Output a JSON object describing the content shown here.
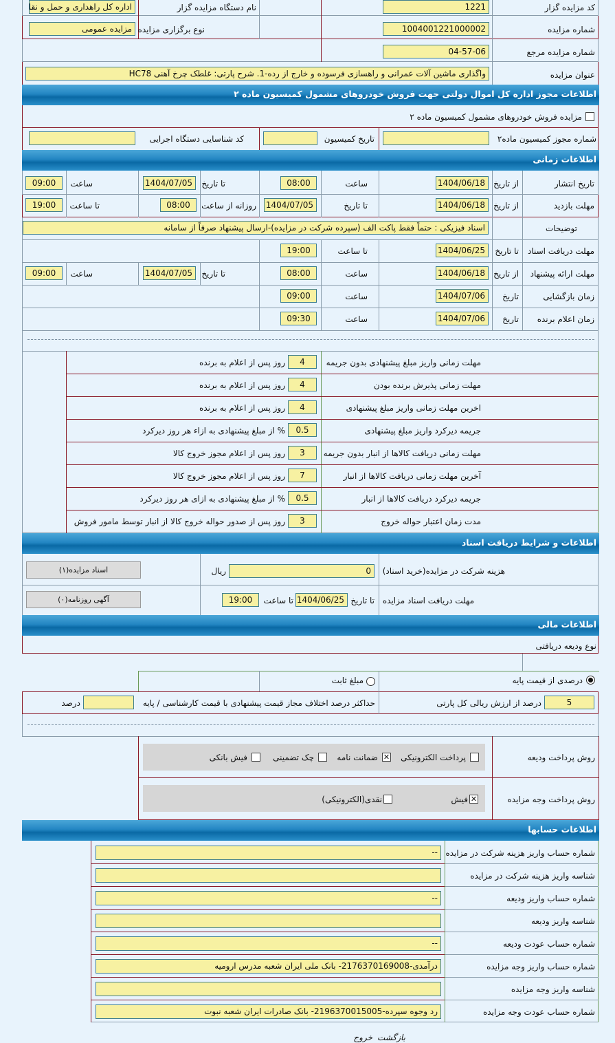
{
  "auction": {
    "auctioneer_code_label": "کد مزایده گزار",
    "auctioneer_code": "1221",
    "org_name_label": "نام دستگاه مزایده گزار",
    "org_name": "اداره کل راهداری و حمل و نقل",
    "auction_number_label": "شماره مزایده",
    "auction_number": "1004001221000002",
    "auction_type_label": "نوع برگزاری مزایده",
    "auction_type": "مزایده عمومی",
    "ref_number_label": "شماره مزایده مرجع",
    "ref_number": "04-57-06",
    "title_label": "عنوان مزایده",
    "title": "واگذاری ماشین آلات عمرانی و راهسازی فرسوده و خارج از رده-1. شرح پارتی: غلطک چرخ آهنی HC78"
  },
  "commission": {
    "header": "اطلاعات مجوز اداره کل اموال دولتی جهت فروش خودروهای مشمول کمیسیون ماده ۲",
    "checkbox_label": "مزایده فروش خودروهای مشمول کمیسیون ماده ۲",
    "checked": false,
    "permit_label": "شماره مجوز کمیسیون ماده۲",
    "permit": "",
    "date_label": "تاریخ کمیسیون",
    "date": "",
    "exec_code_label": "کد شناسایی دستگاه اجرایی",
    "exec_code": ""
  },
  "timing": {
    "header": "اطلاعات زمانی",
    "publish": {
      "label": "تاریخ انتشار",
      "from_label": "از تاریخ",
      "from": "1404/06/18",
      "time_label": "ساعت",
      "time": "08:00",
      "to_label": "تا تاریخ",
      "to": "1404/07/05",
      "to_time_label": "ساعت",
      "to_time": "09:00"
    },
    "visit": {
      "label": "مهلت بازدید",
      "from_label": "از تاریخ",
      "from": "1404/06/18",
      "to_label": "تا تاریخ",
      "to": "1404/07/05",
      "daily_label": "روزانه از ساعت",
      "daily_from": "08:00",
      "until_label": "تا ساعت",
      "daily_to": "19:00"
    },
    "notes": {
      "label": "توضیحات",
      "value": "اسناد فیزیکی : حتماً فقط پاکت الف (سپرده شرکت در مزایده)-ارسال پیشنهاد صرفاً از سامانه"
    },
    "docs": {
      "label": "مهلت دریافت اسناد",
      "to_label": "تا تاریخ",
      "to": "1404/06/25",
      "time_label": "تا ساعت",
      "time": "19:00"
    },
    "offer": {
      "label": "مهلت ارائه پیشنهاد",
      "from_label": "از تاریخ",
      "from": "1404/06/18",
      "time_label": "ساعت",
      "time": "08:00",
      "to_label": "تا تاریخ",
      "to": "1404/07/05",
      "to_time_label": "ساعت",
      "to_time": "09:00"
    },
    "opening": {
      "label": "زمان بازگشایی",
      "date_label": "تاریخ",
      "date": "1404/07/06",
      "time_label": "ساعت",
      "time": "09:00"
    },
    "winner": {
      "label": "زمان اعلام برنده",
      "date_label": "تاریخ",
      "date": "1404/07/06",
      "time_label": "ساعت",
      "time": "09:30"
    }
  },
  "terms": [
    {
      "label": "مهلت زمانی واریز مبلغ پیشنهادی بدون جریمه",
      "value": "4",
      "suffix": "روز پس از اعلام به برنده"
    },
    {
      "label": "مهلت زمانی پذیرش برنده بودن",
      "value": "4",
      "suffix": "روز پس از اعلام به برنده"
    },
    {
      "label": "اخرین مهلت زمانی واریز مبلغ پیشنهادی",
      "value": "4",
      "suffix": "روز پس از اعلام به برنده"
    },
    {
      "label": "جریمه دیرکرد واریز مبلغ پیشنهادی",
      "value": "0.5",
      "suffix": "% از مبلغ پیشنهادی به ازاء هر روز دیرکرد"
    },
    {
      "label": "مهلت زمانی دریافت کالاها از انبار بدون جریمه",
      "value": "3",
      "suffix": "روز پس از اعلام مجوز خروج کالا"
    },
    {
      "label": "آخرین مهلت زمانی دریافت کالاها از انبار",
      "value": "7",
      "suffix": "روز پس از اعلام مجوز خروج کالا"
    },
    {
      "label": "جریمه دیرکرد دریافت کالاها از انبار",
      "value": "0.5",
      "suffix": "% از مبلغ پیشنهادی به ازای هر روز دیرکرد"
    },
    {
      "label": "مدت زمان اعتبار حواله خروج",
      "value": "3",
      "suffix": "روز پس از صدور حواله خروج کالا از انبار توسط مامور فروش"
    }
  ],
  "docs": {
    "header": "اطلاعات و شرایط دریافت اسناد",
    "fee_label": "هزینه شرکت در مزایده(خرید اسناد)",
    "fee": "0",
    "currency": "ریال",
    "doc_button": "اسناد مزایده(۱)",
    "deadline_label": "مهلت دریافت اسناد مزایده",
    "to_date_label": "تا تاریخ",
    "date": "1404/06/25",
    "to_time_label": "تا ساعت",
    "time": "19:00",
    "newspaper_button": "آگهی روزنامه(۰)"
  },
  "finance": {
    "header": "اطلاعات مالی",
    "deposit_type_label": "نوع ودیعه دریافتی",
    "radio_percent": "درصدی از قیمت پایه",
    "radio_fixed": "مبلغ ثابت",
    "selected": "percent",
    "percent_value": "5",
    "percent_suffix": "درصد از ارزش ریالی کل پارتی",
    "max_diff_label": "حداکثر درصد اختلاف مجاز قیمت پیشنهادی با قیمت کارشناسی / پایه",
    "max_diff_value": "",
    "max_diff_unit": "درصد",
    "deposit_method_label": "روش پرداخت ودیعه",
    "deposit_methods": [
      {
        "label": "پرداخت الکترونیکی",
        "checked": false
      },
      {
        "label": "ضمانت نامه",
        "checked": true
      },
      {
        "label": "چک تضمینی",
        "checked": false
      },
      {
        "label": "فیش بانکی",
        "checked": false
      }
    ],
    "payment_method_label": "روش پرداخت وجه مزایده",
    "payment_methods": [
      {
        "label": "فیش",
        "checked": true
      },
      {
        "label": "نقدی(الکترونیکی)",
        "checked": false
      }
    ]
  },
  "accounts": {
    "header": "اطلاعات حسابها",
    "rows": [
      {
        "label": "شماره حساب واریز هزینه شرکت در مزایده",
        "value": "--"
      },
      {
        "label": "شناسه واریز هزینه شرکت در مزایده",
        "value": ""
      },
      {
        "label": "شماره حساب واریز ودیعه",
        "value": "--"
      },
      {
        "label": "شناسه واریز ودیعه",
        "value": ""
      },
      {
        "label": "شماره حساب عودت ودیعه",
        "value": "--"
      },
      {
        "label": "شماره حساب واریز وجه مزایده",
        "value": "درآمدی-2176370169008- بانک ملی ایران شعبه مدرس ارومیه"
      },
      {
        "label": "شناسه واریز وجه مزایده",
        "value": ""
      },
      {
        "label": "شماره حساب عودت وجه مزایده",
        "value": "رد وجوه سپرده-2196370015005- بانک صادرات ایران شعبه نبوت"
      }
    ]
  },
  "footer": {
    "back": "بازگشت",
    "exit": "خروج"
  },
  "colors": {
    "header": "#1a7fbf",
    "input": "#f7f1a2",
    "background": "#e8f3fc"
  }
}
